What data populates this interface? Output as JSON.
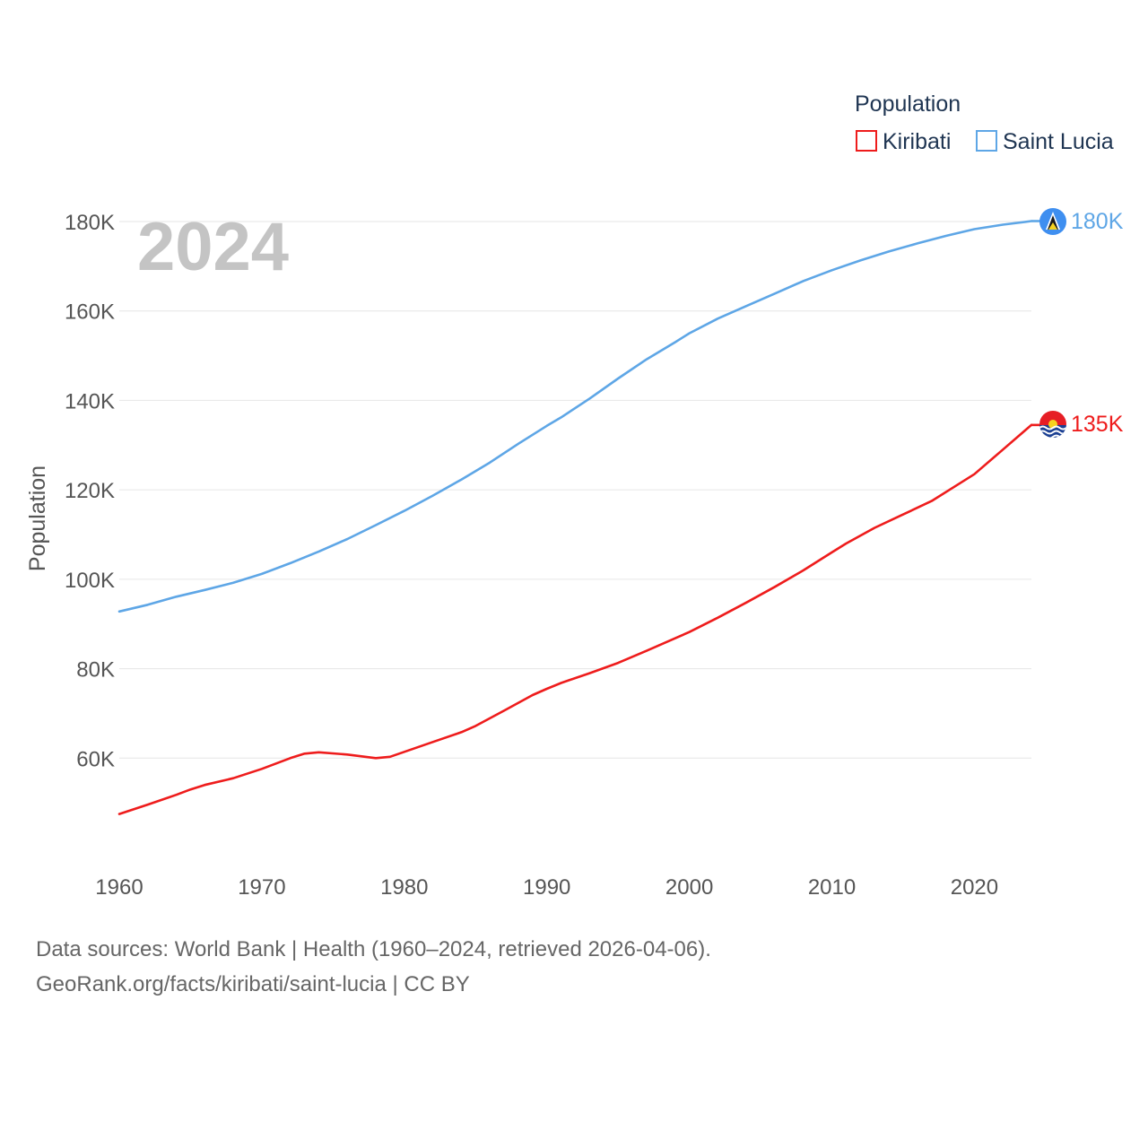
{
  "chart_data": {
    "type": "line",
    "year_label": "2024",
    "ylabel": "Population",
    "xlim": [
      1960,
      2024
    ],
    "ylim": [
      40000,
      180000
    ],
    "x_ticks": [
      1960,
      1970,
      1980,
      1990,
      2000,
      2010,
      2020
    ],
    "x_tick_labels": [
      "1960",
      "1970",
      "1980",
      "1990",
      "2000",
      "2010",
      "2020"
    ],
    "y_ticks": [
      60000,
      80000,
      100000,
      120000,
      140000,
      160000,
      180000
    ],
    "y_tick_labels": [
      "60K",
      "80K",
      "100K",
      "120K",
      "140K",
      "160K",
      "180K"
    ],
    "gridlines": true,
    "legend": {
      "title": "Population",
      "position": "top-right",
      "entries": [
        "Kiribati",
        "Saint Lucia"
      ]
    },
    "series": [
      {
        "name": "Kiribati",
        "color": "#ee1c1c",
        "end_label": "135K",
        "flag_icon": "kiribati-flag-icon",
        "x": [
          1960,
          1962,
          1964,
          1965,
          1966,
          1968,
          1970,
          1972,
          1973,
          1974,
          1976,
          1978,
          1979,
          1980,
          1982,
          1984,
          1985,
          1987,
          1989,
          1990,
          1991,
          1993,
          1995,
          1997,
          1999,
          2000,
          2002,
          2004,
          2006,
          2008,
          2010,
          2011,
          2013,
          2015,
          2017,
          2019,
          2020,
          2022,
          2024
        ],
        "values": [
          47500,
          49600,
          51800,
          53000,
          54000,
          55500,
          57600,
          60000,
          61000,
          61300,
          60800,
          60000,
          60300,
          61400,
          63600,
          65800,
          67200,
          70600,
          74100,
          75500,
          76800,
          79000,
          81300,
          84000,
          86800,
          88200,
          91400,
          94800,
          98300,
          102000,
          106000,
          108000,
          111500,
          114500,
          117500,
          121500,
          123500,
          129000,
          134500
        ]
      },
      {
        "name": "Saint Lucia",
        "color": "#5ea6e6",
        "end_label": "180K",
        "flag_icon": "saint-lucia-flag-icon",
        "x": [
          1960,
          1962,
          1964,
          1966,
          1968,
          1970,
          1972,
          1974,
          1976,
          1978,
          1980,
          1982,
          1984,
          1986,
          1988,
          1990,
          1991,
          1993,
          1995,
          1997,
          1999,
          2000,
          2002,
          2004,
          2006,
          2008,
          2010,
          2012,
          2014,
          2016,
          2018,
          2020,
          2022,
          2024
        ],
        "values": [
          92800,
          94300,
          96100,
          97600,
          99200,
          101200,
          103600,
          106200,
          109000,
          112100,
          115300,
          118700,
          122300,
          126100,
          130300,
          134300,
          136200,
          140400,
          144900,
          149200,
          153000,
          155000,
          158300,
          161100,
          163900,
          166700,
          169100,
          171300,
          173300,
          175100,
          176800,
          178300,
          179300,
          180100
        ]
      }
    ]
  },
  "footer": {
    "line1": "Data sources: World Bank | Health (1960–2024, retrieved 2026-04-06).",
    "line2": "GeoRank.org/facts/kiribati/saint-lucia | CC BY"
  }
}
